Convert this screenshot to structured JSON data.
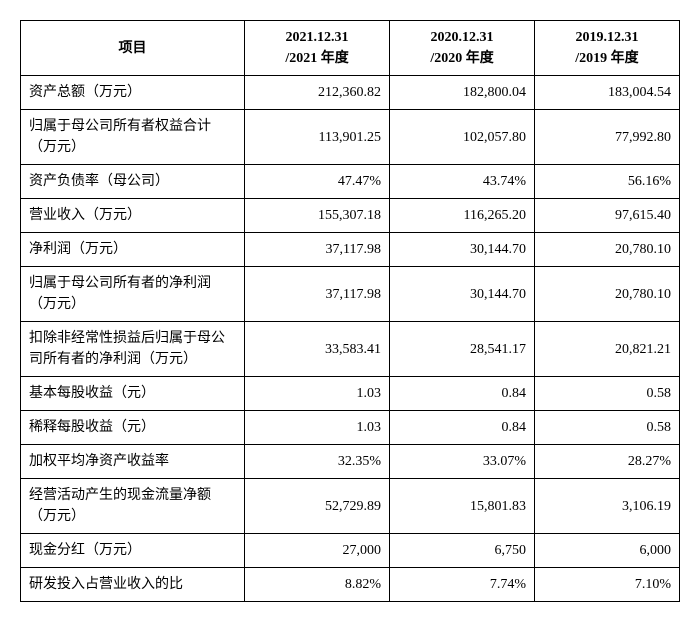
{
  "table": {
    "columns": [
      {
        "label": "项目"
      },
      {
        "label": "2021.12.31\n/2021 年度"
      },
      {
        "label": "2020.12.31\n/2020 年度"
      },
      {
        "label": "2019.12.31\n/2019 年度"
      }
    ],
    "rows": [
      {
        "label": "资产总额（万元）",
        "v1": "212,360.82",
        "v2": "182,800.04",
        "v3": "183,004.54"
      },
      {
        "label": "归属于母公司所有者权益合计（万元）",
        "v1": "113,901.25",
        "v2": "102,057.80",
        "v3": "77,992.80"
      },
      {
        "label": "资产负债率（母公司）",
        "v1": "47.47%",
        "v2": "43.74%",
        "v3": "56.16%"
      },
      {
        "label": "营业收入（万元）",
        "v1": "155,307.18",
        "v2": "116,265.20",
        "v3": "97,615.40"
      },
      {
        "label": "净利润（万元）",
        "v1": "37,117.98",
        "v2": "30,144.70",
        "v3": "20,780.10"
      },
      {
        "label": "归属于母公司所有者的净利润（万元）",
        "v1": "37,117.98",
        "v2": "30,144.70",
        "v3": "20,780.10"
      },
      {
        "label": "扣除非经常性损益后归属于母公司所有者的净利润（万元）",
        "v1": "33,583.41",
        "v2": "28,541.17",
        "v3": "20,821.21"
      },
      {
        "label": "基本每股收益（元）",
        "v1": "1.03",
        "v2": "0.84",
        "v3": "0.58"
      },
      {
        "label": "稀释每股收益（元）",
        "v1": "1.03",
        "v2": "0.84",
        "v3": "0.58"
      },
      {
        "label": "加权平均净资产收益率",
        "v1": "32.35%",
        "v2": "33.07%",
        "v3": "28.27%"
      },
      {
        "label": "经营活动产生的现金流量净额（万元）",
        "v1": "52,729.89",
        "v2": "15,801.83",
        "v3": "3,106.19"
      },
      {
        "label": "现金分红（万元）",
        "v1": "27,000",
        "v2": "6,750",
        "v3": "6,000"
      },
      {
        "label": "研发投入占营业收入的比",
        "v1": "8.82%",
        "v2": "7.74%",
        "v3": "7.10%"
      }
    ],
    "style": {
      "border_color": "#000000",
      "background_color": "#ffffff",
      "text_color": "#000000",
      "font_family": "SimSun",
      "header_fontsize": 14,
      "cell_fontsize": 14,
      "header_align": "center",
      "label_align": "left",
      "value_align": "right"
    }
  }
}
